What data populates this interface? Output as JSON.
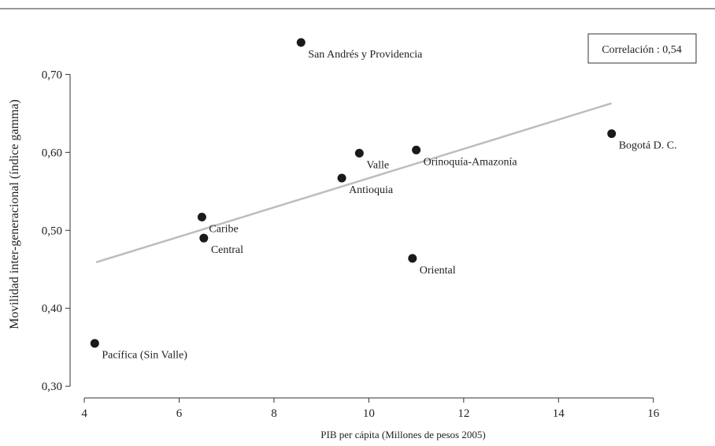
{
  "chart_data": {
    "type": "scatter",
    "xlabel": "PIB per cápita (Millones de pesos 2005)",
    "ylabel": "Movilidad inter-generacional (índice gamma)",
    "xlim": [
      3.7,
      17.3
    ],
    "ylim": [
      0.285,
      0.755
    ],
    "xticks": [
      4,
      6,
      8,
      10,
      12,
      14,
      16
    ],
    "yticks": [
      0.3,
      0.4,
      0.5,
      0.6,
      0.7
    ],
    "xtick_labels": [
      "4",
      "6",
      "8",
      "10",
      "12",
      "14",
      "16"
    ],
    "ytick_labels": [
      "0,30",
      "0,40",
      "0,50",
      "0,60",
      "0,70"
    ],
    "points": [
      {
        "label": "San Andrés y Providencia",
        "x": 8.57,
        "y": 0.741,
        "label_pos": "below-right"
      },
      {
        "label": "Bogotá D. C.",
        "x": 15.12,
        "y": 0.624,
        "label_pos": "below-right"
      },
      {
        "label": "Orinoquía-Amazonía",
        "x": 11.0,
        "y": 0.603,
        "label_pos": "below-right"
      },
      {
        "label": "Valle",
        "x": 9.8,
        "y": 0.599,
        "label_pos": "below-right"
      },
      {
        "label": "Antioquia",
        "x": 9.43,
        "y": 0.567,
        "label_pos": "below-right"
      },
      {
        "label": "Caribe",
        "x": 6.48,
        "y": 0.517,
        "label_pos": "below-right"
      },
      {
        "label": "Central",
        "x": 6.52,
        "y": 0.49,
        "label_pos": "below-right"
      },
      {
        "label": "Oriental",
        "x": 10.92,
        "y": 0.464,
        "label_pos": "below-right"
      },
      {
        "label": "Pacífica (Sin Valle)",
        "x": 4.22,
        "y": 0.355,
        "label_pos": "below-right"
      }
    ],
    "trendline": {
      "x": [
        4.25,
        15.12
      ],
      "y": [
        0.459,
        0.663
      ]
    },
    "annotation": "Correlación : 0,54",
    "grid": false
  }
}
